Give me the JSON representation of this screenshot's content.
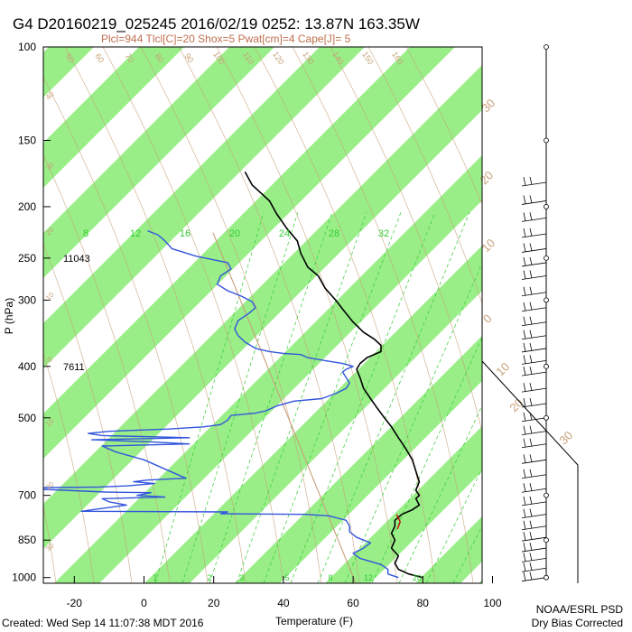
{
  "title": "G4 D20160219_025245 2016/02/19 0252: 13.87N 163.35W",
  "subtitle": "Plcl=944 Tlcl[C]=20 Shox=5 Pwat[cm]=4 Cape[J]= 5",
  "footer": {
    "created": "Created: Wed Sep 14 11:07:38 MDT 2016",
    "org": "NOAA/ESRL PSD",
    "note": "Dry Bias Corrected"
  },
  "colors": {
    "temperature": "#000000",
    "dewpoint": "#3355dd",
    "band": "#99ee88",
    "isotherm_label": "#c8a078",
    "mixing_ratio": "#33cc33",
    "adiabat": "#c8a078",
    "lcl": "#cc0000"
  },
  "chart_data": {
    "type": "line",
    "xlabel": "Temperature (F)",
    "ylabel": "P (hPa)",
    "xlim": [
      -30,
      110
    ],
    "ylim": [
      1025,
      100
    ],
    "y_scale": "log",
    "x_ticks": [
      "-20",
      "0",
      "20",
      "40",
      "60",
      "80",
      "100"
    ],
    "y_ticks": [
      "100",
      "150",
      "200",
      "250",
      "300",
      "400",
      "500",
      "700",
      "850",
      "1000"
    ],
    "height_labels": [
      {
        "text": "11043",
        "p": 250
      },
      {
        "text": "7611",
        "p": 400
      }
    ],
    "mixing_ratio_labels": {
      "top": [
        "8",
        "12",
        "16",
        "20",
        "24",
        "28",
        "32"
      ],
      "bottom": [
        "1",
        "2",
        "3",
        "5",
        "8",
        "12",
        "20"
      ]
    },
    "isotherm_labels": {
      "top": [
        "-50",
        "-60",
        "-70",
        "-80",
        "-90",
        "-100",
        "-110",
        "-120",
        "-130",
        "-140",
        "-150",
        "-160"
      ],
      "right": [
        "-30",
        "-20",
        "-10",
        "0",
        "10",
        "20",
        "30"
      ],
      "left": [
        "-40",
        "-30",
        "-20",
        "-10",
        "0",
        "10",
        "20",
        "30"
      ]
    },
    "series": [
      {
        "name": "",
        "key": "temperature",
        "points": [
          [
            80,
            1000
          ],
          [
            76,
            985
          ],
          [
            73,
            965
          ],
          [
            72,
            940
          ],
          [
            73,
            910
          ],
          [
            71,
            880
          ],
          [
            72,
            850
          ],
          [
            71,
            825
          ],
          [
            72,
            800
          ],
          [
            72,
            780
          ],
          [
            74,
            760
          ],
          [
            77,
            745
          ],
          [
            79,
            730
          ],
          [
            78,
            710
          ],
          [
            79,
            700
          ],
          [
            78,
            685
          ],
          [
            79,
            660
          ],
          [
            78,
            630
          ],
          [
            77,
            600
          ],
          [
            75,
            570
          ],
          [
            73,
            545
          ],
          [
            71,
            520
          ],
          [
            69,
            500
          ],
          [
            67,
            480
          ],
          [
            65,
            460
          ],
          [
            63,
            440
          ],
          [
            62,
            420
          ],
          [
            61,
            405
          ],
          [
            62,
            395
          ],
          [
            64,
            385
          ],
          [
            68,
            375
          ],
          [
            68,
            365
          ],
          [
            66,
            355
          ],
          [
            63,
            345
          ],
          [
            60,
            330
          ],
          [
            57,
            312
          ],
          [
            55,
            300
          ],
          [
            52,
            285
          ],
          [
            50,
            270
          ],
          [
            47,
            260
          ],
          [
            45,
            245
          ],
          [
            44,
            232
          ],
          [
            41,
            220
          ],
          [
            38,
            206
          ],
          [
            36,
            195
          ],
          [
            31,
            182
          ],
          [
            29,
            172
          ]
        ]
      },
      {
        "name": "",
        "key": "dewpoint",
        "points": [
          [
            73,
            1000
          ],
          [
            70,
            985
          ],
          [
            70,
            965
          ],
          [
            68,
            945
          ],
          [
            62,
            920
          ],
          [
            60,
            900
          ],
          [
            63,
            880
          ],
          [
            65,
            860
          ],
          [
            61,
            840
          ],
          [
            59,
            820
          ],
          [
            59,
            800
          ],
          [
            58,
            780
          ],
          [
            53,
            765
          ],
          [
            46,
            760
          ],
          [
            22,
            758
          ],
          [
            24,
            752
          ],
          [
            -18,
            750
          ],
          [
            -5,
            730
          ],
          [
            -10,
            720
          ],
          [
            -12,
            710
          ],
          [
            6,
            705
          ],
          [
            -2,
            700
          ],
          [
            2,
            692
          ],
          [
            -11,
            690
          ],
          [
            -33,
            680
          ],
          [
            -37,
            678
          ],
          [
            -13,
            675
          ],
          [
            -5,
            672
          ],
          [
            3,
            665
          ],
          [
            -3,
            660
          ],
          [
            1,
            655
          ],
          [
            12,
            650
          ],
          [
            0,
            600
          ],
          [
            -8,
            580
          ],
          [
            -12,
            565
          ],
          [
            13,
            560
          ],
          [
            2,
            555
          ],
          [
            -15,
            550
          ],
          [
            13,
            545
          ],
          [
            -12,
            540
          ],
          [
            -16,
            535
          ],
          [
            -10,
            530
          ],
          [
            7,
            525
          ],
          [
            17,
            520
          ],
          [
            22,
            515
          ],
          [
            24,
            505
          ],
          [
            25,
            495
          ],
          [
            32,
            490
          ],
          [
            35,
            485
          ],
          [
            38,
            475
          ],
          [
            43,
            465
          ],
          [
            51,
            460
          ],
          [
            55,
            450
          ],
          [
            58,
            440
          ],
          [
            59,
            430
          ],
          [
            58,
            420
          ],
          [
            57,
            410
          ],
          [
            58,
            405
          ],
          [
            60,
            400
          ],
          [
            57,
            395
          ],
          [
            52,
            390
          ],
          [
            47,
            385
          ],
          [
            45,
            380
          ],
          [
            40,
            378
          ],
          [
            36,
            375
          ],
          [
            32,
            370
          ],
          [
            29,
            360
          ],
          [
            27,
            350
          ],
          [
            26,
            340
          ],
          [
            27,
            328
          ],
          [
            30,
            318
          ],
          [
            32,
            310
          ],
          [
            31,
            302
          ],
          [
            28,
            295
          ],
          [
            24,
            288
          ],
          [
            21,
            280
          ],
          [
            22,
            270
          ],
          [
            25,
            262
          ],
          [
            24,
            255
          ],
          [
            15,
            248
          ],
          [
            8,
            240
          ],
          [
            6,
            232
          ],
          [
            4,
            226
          ],
          [
            1,
            222
          ]
        ]
      }
    ],
    "lcl_marker": {
      "t": 73,
      "p": 785
    }
  }
}
